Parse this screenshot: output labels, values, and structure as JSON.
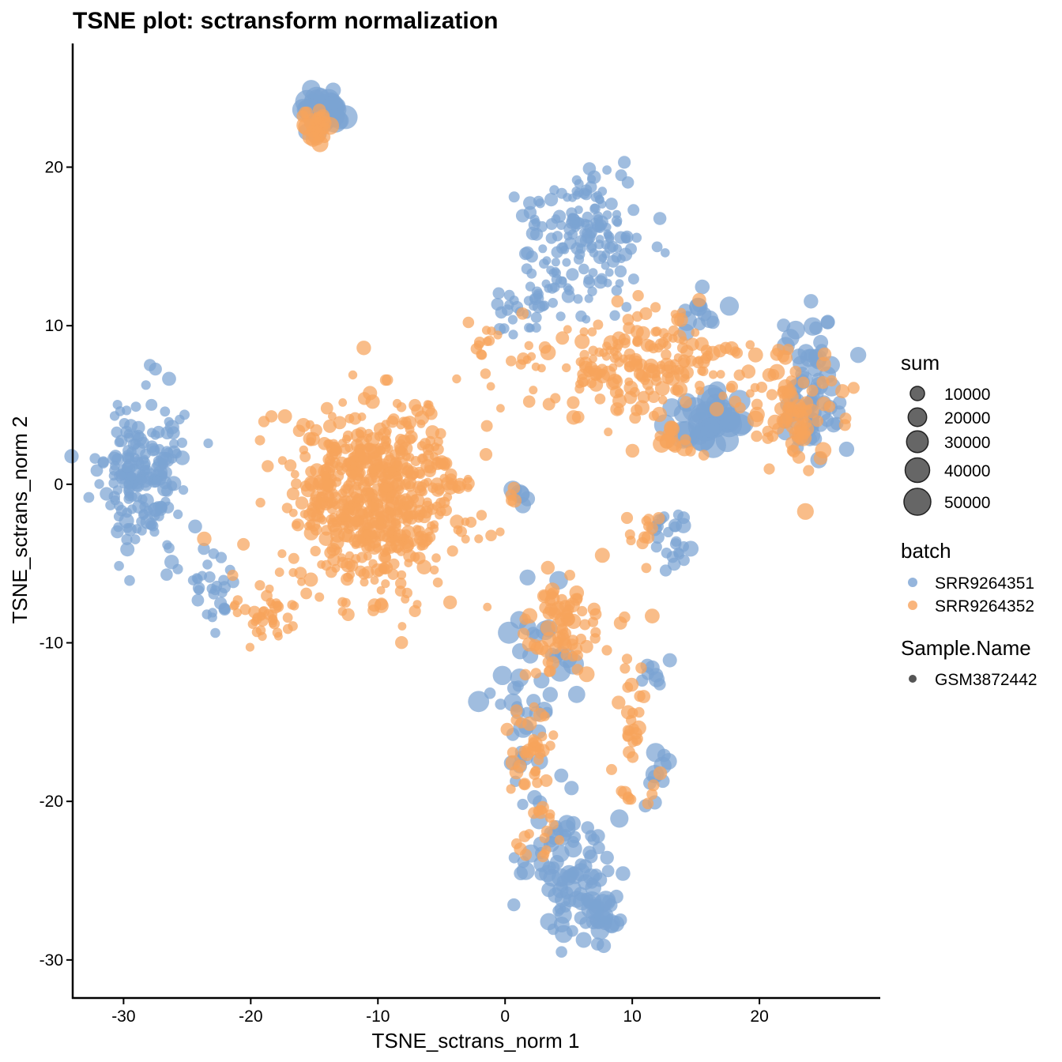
{
  "chart_data": {
    "type": "scatter",
    "title": "TSNE plot: sctransform normalization",
    "xlabel": "TSNE_sctrans_norm 1",
    "ylabel": "TSNE_sctrans_norm 2",
    "xlim": [
      -34,
      29.5
    ],
    "ylim": [
      -32.4,
      27.8
    ],
    "xticks": [
      -30,
      -20,
      -10,
      0,
      10,
      20
    ],
    "yticks": [
      -30,
      -20,
      -10,
      0,
      10,
      20
    ],
    "grid": false,
    "legend_placement": "right",
    "colors": {
      "SRR9264351": "#7BA3D3",
      "SRR9264352": "#F7A35C",
      "sample": "#555555"
    },
    "legend": {
      "size": {
        "title": "sum",
        "labels": [
          "10000",
          "20000",
          "30000",
          "40000",
          "50000"
        ],
        "values": [
          10000,
          20000,
          30000,
          40000,
          50000
        ]
      },
      "color": {
        "title": "batch",
        "labels": [
          "SRR9264351",
          "SRR9264352"
        ]
      },
      "shape": {
        "title": "Sample.Name",
        "labels": [
          "GSM3872442"
        ]
      }
    },
    "series": [
      {
        "name": "SRR9264351",
        "clusters": [
          {
            "cx": -28.5,
            "cy": 0.8,
            "sx": 1.6,
            "sy": 2.3,
            "n": 190,
            "smin": 3000,
            "smax": 12000
          },
          {
            "cx": -14.3,
            "cy": 23.6,
            "sx": 0.9,
            "sy": 0.6,
            "n": 45,
            "smin": 12000,
            "smax": 42000
          },
          {
            "cx": 6.3,
            "cy": 15.8,
            "sx": 2.4,
            "sy": 2.2,
            "n": 170,
            "smin": 2000,
            "smax": 9000
          },
          {
            "cx": 1.5,
            "cy": 11.3,
            "sx": 1.4,
            "sy": 0.9,
            "n": 35,
            "smin": 3000,
            "smax": 8000
          },
          {
            "cx": 24.3,
            "cy": 5.8,
            "sx": 1.2,
            "sy": 2.3,
            "n": 70,
            "smin": 8000,
            "smax": 22000
          },
          {
            "cx": 16.3,
            "cy": 4.0,
            "sx": 1.4,
            "sy": 1.0,
            "n": 40,
            "smin": 20000,
            "smax": 58000
          },
          {
            "cx": 15.8,
            "cy": 10.5,
            "sx": 1.2,
            "sy": 0.5,
            "n": 12,
            "smin": 8000,
            "smax": 25000
          },
          {
            "cx": 13.2,
            "cy": -3.3,
            "sx": 0.8,
            "sy": 1.2,
            "n": 25,
            "smin": 4000,
            "smax": 14000
          },
          {
            "cx": -23.0,
            "cy": -6.5,
            "sx": 1.2,
            "sy": 1.4,
            "n": 30,
            "smin": 3000,
            "smax": 8000
          },
          {
            "cx": 2.5,
            "cy": -11.5,
            "sx": 1.4,
            "sy": 2.5,
            "n": 28,
            "smin": 10000,
            "smax": 32000
          },
          {
            "cx": 4.6,
            "cy": -24.8,
            "sx": 1.7,
            "sy": 2.0,
            "n": 80,
            "smin": 5000,
            "smax": 20000
          },
          {
            "cx": 7.6,
            "cy": -27.2,
            "sx": 0.9,
            "sy": 1.4,
            "n": 30,
            "smin": 8000,
            "smax": 26000
          },
          {
            "cx": 11.6,
            "cy": -18.2,
            "sx": 0.6,
            "sy": 1.0,
            "n": 10,
            "smin": 8000,
            "smax": 24000
          },
          {
            "cx": 11.7,
            "cy": -12.3,
            "sx": 0.6,
            "sy": 0.8,
            "n": 8,
            "smin": 6000,
            "smax": 14000
          },
          {
            "cx": 1.2,
            "cy": -0.8,
            "sx": 0.4,
            "sy": 0.3,
            "n": 5,
            "smin": 12000,
            "smax": 30000
          },
          {
            "cx": 1.5,
            "cy": -16.5,
            "sx": 1.0,
            "sy": 2.8,
            "n": 22,
            "smin": 5000,
            "smax": 18000
          }
        ]
      },
      {
        "name": "SRR9264352",
        "clusters": [
          {
            "cx": -10.0,
            "cy": -0.8,
            "sx": 3.3,
            "sy": 3.0,
            "n": 640,
            "smin": 2000,
            "smax": 11000
          },
          {
            "cx": -18.8,
            "cy": -8.2,
            "sx": 1.4,
            "sy": 0.9,
            "n": 40,
            "smin": 2000,
            "smax": 7000
          },
          {
            "cx": -15.0,
            "cy": 22.5,
            "sx": 0.7,
            "sy": 0.6,
            "n": 25,
            "smin": 6000,
            "smax": 20000
          },
          {
            "cx": 11.0,
            "cy": 7.7,
            "sx": 4.0,
            "sy": 1.5,
            "n": 200,
            "smin": 2000,
            "smax": 13000
          },
          {
            "cx": 22.5,
            "cy": 5.0,
            "sx": 1.8,
            "sy": 2.0,
            "n": 80,
            "smin": 5000,
            "smax": 16000
          },
          {
            "cx": -1.8,
            "cy": 9.0,
            "sx": 0.6,
            "sy": 1.0,
            "n": 12,
            "smin": 2000,
            "smax": 6000
          },
          {
            "cx": 4.8,
            "cy": -8.5,
            "sx": 1.5,
            "sy": 1.5,
            "n": 70,
            "smin": 4000,
            "smax": 14000
          },
          {
            "cx": 2.2,
            "cy": -17.0,
            "sx": 0.9,
            "sy": 3.2,
            "n": 45,
            "smin": 3000,
            "smax": 12000
          },
          {
            "cx": 10.0,
            "cy": -16.0,
            "sx": 0.8,
            "sy": 2.8,
            "n": 35,
            "smin": 4000,
            "smax": 12000
          },
          {
            "cx": 11.0,
            "cy": -2.8,
            "sx": 0.8,
            "sy": 1.0,
            "n": 12,
            "smin": 3000,
            "smax": 9000
          },
          {
            "cx": 13.5,
            "cy": 2.6,
            "sx": 0.9,
            "sy": 0.5,
            "n": 15,
            "smin": 4000,
            "smax": 18000
          },
          {
            "cx": 0.8,
            "cy": -0.6,
            "sx": 0.4,
            "sy": 0.3,
            "n": 4,
            "smin": 5000,
            "smax": 12000
          },
          {
            "cx": 3.0,
            "cy": -21.8,
            "sx": 1.0,
            "sy": 0.8,
            "n": 15,
            "smin": 3000,
            "smax": 9000
          }
        ]
      }
    ]
  }
}
